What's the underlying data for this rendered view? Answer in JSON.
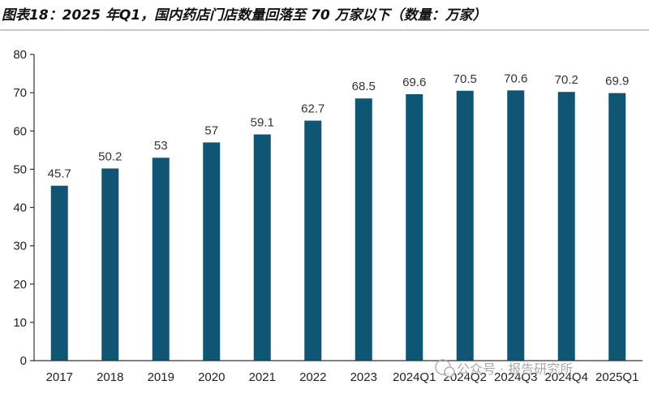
{
  "figure": {
    "title": "图表18：2025 年Q1，国内药店门店数量回落至 70 万家以下（数量：万家）"
  },
  "chart_data": {
    "type": "bar",
    "title": "图表18：2025 年Q1，国内药店门店数量回落至 70 万家以下（数量：万家）",
    "xlabel": "",
    "ylabel": "",
    "unit": "万家",
    "categories": [
      "2017",
      "2018",
      "2019",
      "2020",
      "2021",
      "2022",
      "2023",
      "2024Q1",
      "2024Q2",
      "2024Q3",
      "2024Q4",
      "2025Q1"
    ],
    "values": [
      45.7,
      50.2,
      53,
      57,
      59.1,
      62.7,
      68.5,
      69.6,
      70.5,
      70.6,
      70.2,
      69.9
    ],
    "value_labels": [
      "45.7",
      "50.2",
      "53",
      "57",
      "59.1",
      "62.7",
      "68.5",
      "69.6",
      "70.5",
      "70.6",
      "70.2",
      "69.9"
    ],
    "ylim": [
      0,
      80
    ],
    "yticks": [
      0,
      10,
      20,
      30,
      40,
      50,
      60,
      70,
      80
    ],
    "grid": false,
    "legend": "none",
    "bar_color": "#0f5675"
  },
  "watermark": {
    "text": "公众号 · 报告研究所"
  }
}
